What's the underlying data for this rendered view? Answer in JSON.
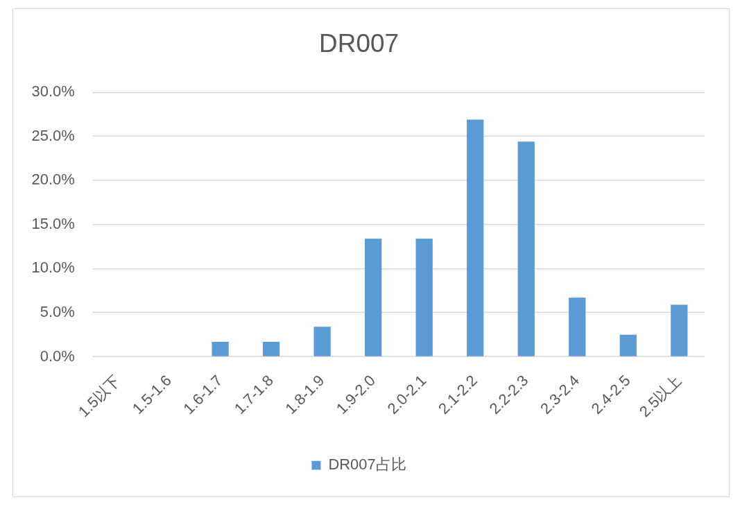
{
  "chart_data": {
    "type": "bar",
    "title": "DR007",
    "categories": [
      "1.5以下",
      "1.5-1.6",
      "1.6-1.7",
      "1.7-1.8",
      "1.8-1.9",
      "1.9-2.0",
      "2.0-2.1",
      "2.1-2.2",
      "2.2-2.3",
      "2.3-2.4",
      "2.4-2.5",
      "2.5以上"
    ],
    "series": [
      {
        "name": "DR007占比",
        "color": "#5b9bd5",
        "values": [
          0,
          0,
          1.7,
          1.7,
          3.4,
          13.4,
          13.4,
          26.9,
          24.4,
          6.7,
          2.5,
          5.9
        ]
      }
    ],
    "ylim": [
      0,
      30
    ],
    "yticks": [
      {
        "value": 0,
        "label": "0.0%"
      },
      {
        "value": 5,
        "label": "5.0%"
      },
      {
        "value": 10,
        "label": "10.0%"
      },
      {
        "value": 15,
        "label": "15.0%"
      },
      {
        "value": 20,
        "label": "20.0%"
      },
      {
        "value": 25,
        "label": "25.0%"
      },
      {
        "value": 30,
        "label": "30.0%"
      }
    ],
    "grid": "y",
    "legend": "bottom"
  }
}
